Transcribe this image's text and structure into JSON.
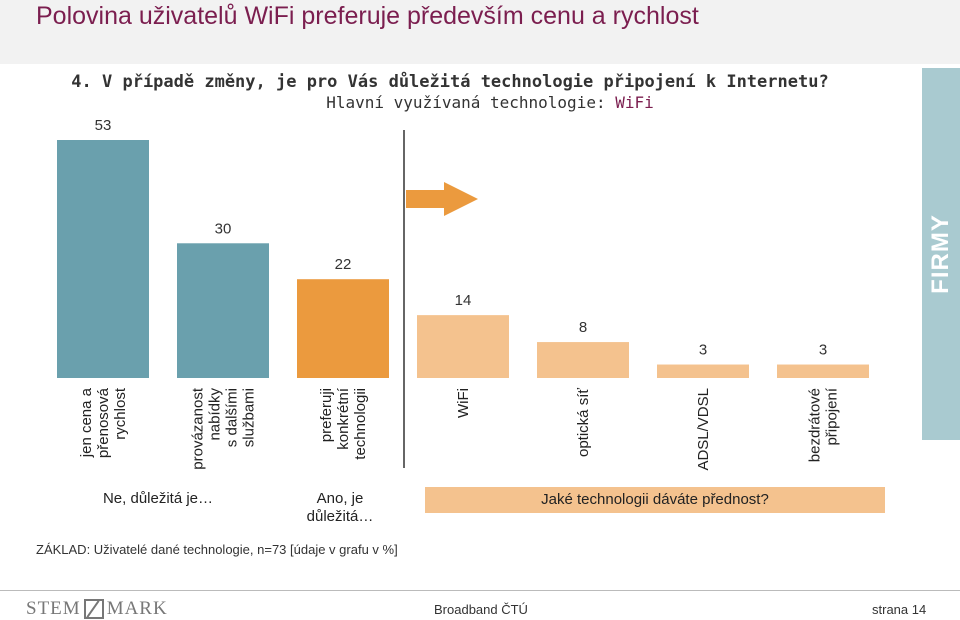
{
  "header": {
    "title": "Polovina uživatelů WiFi preferuje především cenu a rychlost"
  },
  "question": {
    "line1": "4. V případě změny, je pro Vás důležitá technologie připojení k Internetu?",
    "line2_prefix": "Hlavní využívaná technologie:",
    "line2_value": "WiFi"
  },
  "side_tab": {
    "label": "FIRMY"
  },
  "chart_data": {
    "type": "bar",
    "categories": [
      "jen cena a\npřenosová\nrychlost",
      "provázanost\nnabídky\ns dalšími\nslužbami",
      "preferuji\nkonkrétní\ntechnologii",
      "WiFi",
      "optická síť",
      "ADSL/VDSL",
      "bezdrátové\npřipojení"
    ],
    "values": [
      53,
      30,
      22,
      14,
      8,
      3,
      3
    ],
    "colors": [
      "#6aa0ad",
      "#6aa0ad",
      "#eb9a3e",
      "#f4c28e",
      "#f4c28e",
      "#f4c28e",
      "#f4c28e"
    ],
    "ylim": [
      0,
      53
    ],
    "grid": false,
    "legend": "none"
  },
  "groups": {
    "no_label": "Ne, důležitá je…",
    "yes_label": "Ano, je\ndůležitá…",
    "which_label": "Jaké technologii dáváte přednost?"
  },
  "base_note": "ZÁKLAD: Uživatelé dané technologie, n=73 [údaje v grafu v %]",
  "footer": {
    "logo_left": "STEM",
    "logo_right": "MARK",
    "center": "Broadband ČTÚ",
    "page": "strana 14"
  }
}
